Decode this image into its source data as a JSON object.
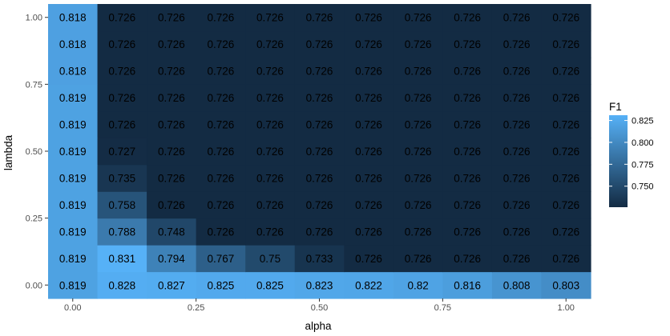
{
  "chart_data": {
    "type": "heatmap",
    "title": "",
    "xlabel": "alpha",
    "ylabel": "lambda",
    "x_values": [
      0,
      0.1,
      0.2,
      0.3,
      0.4,
      0.5,
      0.6,
      0.7,
      0.8,
      0.9,
      1.0
    ],
    "y_values": [
      0,
      0.1,
      0.2,
      0.3,
      0.4,
      0.5,
      0.6,
      0.7,
      0.8,
      0.9,
      1.0
    ],
    "x_ticks": [
      "0.00",
      "0.25",
      "0.50",
      "0.75",
      "1.00"
    ],
    "y_ticks": [
      "0.00",
      "0.25",
      "0.50",
      "0.75",
      "1.00"
    ],
    "xlim": [
      -0.05,
      1.05
    ],
    "ylim": [
      -0.05,
      1.05
    ],
    "rows": [
      [
        "0.819",
        "0.828",
        "0.827",
        "0.825",
        "0.825",
        "0.823",
        "0.822",
        "0.82",
        "0.816",
        "0.808",
        "0.803"
      ],
      [
        "0.819",
        "0.831",
        "0.794",
        "0.767",
        "0.75",
        "0.733",
        "0.726",
        "0.726",
        "0.726",
        "0.726",
        "0.726"
      ],
      [
        "0.819",
        "0.788",
        "0.748",
        "0.726",
        "0.726",
        "0.726",
        "0.726",
        "0.726",
        "0.726",
        "0.726",
        "0.726"
      ],
      [
        "0.819",
        "0.758",
        "0.726",
        "0.726",
        "0.726",
        "0.726",
        "0.726",
        "0.726",
        "0.726",
        "0.726",
        "0.726"
      ],
      [
        "0.819",
        "0.735",
        "0.726",
        "0.726",
        "0.726",
        "0.726",
        "0.726",
        "0.726",
        "0.726",
        "0.726",
        "0.726"
      ],
      [
        "0.819",
        "0.727",
        "0.726",
        "0.726",
        "0.726",
        "0.726",
        "0.726",
        "0.726",
        "0.726",
        "0.726",
        "0.726"
      ],
      [
        "0.819",
        "0.726",
        "0.726",
        "0.726",
        "0.726",
        "0.726",
        "0.726",
        "0.726",
        "0.726",
        "0.726",
        "0.726"
      ],
      [
        "0.819",
        "0.726",
        "0.726",
        "0.726",
        "0.726",
        "0.726",
        "0.726",
        "0.726",
        "0.726",
        "0.726",
        "0.726"
      ],
      [
        "0.818",
        "0.726",
        "0.726",
        "0.726",
        "0.726",
        "0.726",
        "0.726",
        "0.726",
        "0.726",
        "0.726",
        "0.726"
      ],
      [
        "0.818",
        "0.726",
        "0.726",
        "0.726",
        "0.726",
        "0.726",
        "0.726",
        "0.726",
        "0.726",
        "0.726",
        "0.726"
      ],
      [
        "0.818",
        "0.726",
        "0.726",
        "0.726",
        "0.726",
        "0.726",
        "0.726",
        "0.726",
        "0.726",
        "0.726",
        "0.726"
      ]
    ],
    "legend": {
      "title": "F1",
      "ticks": [
        "0.750",
        "0.775",
        "0.800",
        "0.825"
      ],
      "range": [
        0.726,
        0.831
      ],
      "color_low": "#132B43",
      "color_high": "#56B1F7",
      "placement": "right"
    },
    "panel_background": "#EBEBEB",
    "grid_color": "#FFFFFF",
    "grid": true
  }
}
